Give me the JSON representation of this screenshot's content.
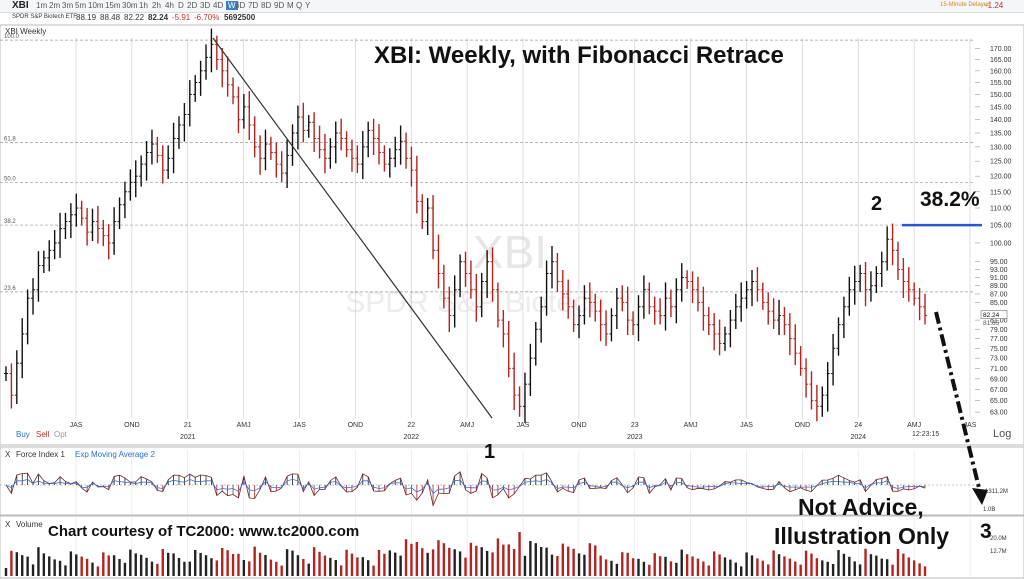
{
  "toolbar": {
    "symbol": "XBI",
    "timeframes": [
      "1m",
      "2m",
      "3m",
      "5m",
      "10m",
      "15m",
      "30m",
      "1h",
      "2h",
      "4h",
      "D",
      "2D",
      "3D",
      "4D",
      "W",
      "6D",
      "7D",
      "8D",
      "9D",
      "M",
      "Q",
      "Y"
    ],
    "active_timeframe": "W",
    "right_note": "15-Minute Delayed",
    "right_change": "-1.24"
  },
  "info": {
    "name": "SPDR S&P Biotech ETF",
    "open": "88.19",
    "high": "88.48",
    "low": "82.22",
    "close": "82.24",
    "change": "-5.91",
    "change_pct": "-6.70%",
    "volume": "5692500"
  },
  "panel_label": "XBI Weekly",
  "watermark": {
    "symbol": "XBI",
    "name": "SPDR S&P Biotech"
  },
  "annotations": {
    "title": "XBI:  Weekly, with Fibonacci Retrace",
    "label_1": "1",
    "label_2": "2",
    "label_3": "3",
    "fib_label": "38.2%",
    "disclaimer_1": "Not Advice,",
    "disclaimer_2": "Illustration Only",
    "courtesy": "Chart courtesy of TC2000:  www.tc2000.com"
  },
  "order_bar": {
    "buy": "Buy",
    "sell": "Sell",
    "opt": "Opt"
  },
  "time_label": "12:23:15",
  "log_label": "Log",
  "indicators": {
    "force_x": "X",
    "force_name": "Force Index 1",
    "ema_name": "Exp Moving Average 2",
    "volume_x": "X",
    "volume_name": "Volume",
    "force_axis_tag": "-1311.2M",
    "vol_axis_top": "20.0M",
    "vol_axis_tag": "12.7M",
    "force_axis_low": "1.0B"
  },
  "colors": {
    "up": "#111111",
    "down": "#b4231f",
    "fib_line": "#2a56d6",
    "grid": "#c9c9c9"
  },
  "chart_data": {
    "type": "candlestick-ohlc",
    "title": "XBI:  Weekly, with Fibonacci Retrace",
    "price_scale": "log",
    "ylim": [
      62,
      175
    ],
    "y_ticks": [
      63,
      65,
      67,
      69,
      71,
      73,
      75,
      77,
      79,
      81,
      85,
      87,
      89,
      91,
      93,
      95,
      100,
      105,
      110,
      115,
      120,
      125,
      130,
      135,
      140,
      145,
      150,
      155,
      160,
      165,
      170
    ],
    "x_ticks": [
      "JAS",
      "OND",
      "21",
      "AMJ",
      "JAS",
      "OND",
      "22",
      "AMJ",
      "JAS",
      "OND",
      "23",
      "AMJ",
      "JAS",
      "OND",
      "24",
      "AMJ",
      "JAS"
    ],
    "x_year_labels": [
      "2021",
      "2022",
      "2023",
      "2024"
    ],
    "fib_levels": [
      {
        "label": "100.0",
        "price": 174
      },
      {
        "label": "61.8",
        "price": 131.5
      },
      {
        "label": "50.0",
        "price": 118
      },
      {
        "label": "38.2",
        "price": 105
      },
      {
        "label": "23.6",
        "price": 87.5
      }
    ],
    "last_price_tags": [
      "82.24",
      "81.65"
    ],
    "weekly_closes": [
      70,
      66,
      72,
      78,
      86,
      88,
      94,
      96,
      98,
      100,
      104,
      106,
      108,
      110,
      107,
      103,
      106,
      104,
      102,
      100,
      106,
      111,
      115,
      118,
      120,
      124,
      128,
      131,
      127,
      122,
      126,
      133,
      138,
      142,
      150,
      155,
      160,
      166,
      172,
      165,
      160,
      154,
      149,
      140,
      145,
      138,
      130,
      126,
      131,
      128,
      124,
      121,
      127,
      135,
      141,
      136,
      139,
      133,
      129,
      126,
      130,
      135,
      133,
      129,
      126,
      124,
      130,
      136,
      133,
      128,
      124,
      126,
      129,
      132,
      126,
      122,
      112,
      106,
      110,
      98,
      92,
      86,
      82,
      88,
      95,
      92,
      88,
      84,
      90,
      95,
      88,
      81,
      78,
      71,
      66,
      64,
      68,
      73,
      79,
      84,
      92,
      95,
      90,
      87,
      84,
      80,
      82,
      86,
      85,
      83,
      80,
      78,
      82,
      86,
      85,
      81,
      80,
      84,
      88,
      84,
      83,
      82,
      86,
      84,
      88,
      91,
      90,
      88,
      85,
      82,
      80,
      78,
      76,
      78,
      81,
      84,
      86,
      88,
      90,
      88,
      85,
      83,
      81,
      82,
      80,
      77,
      74,
      71,
      68,
      65,
      64,
      66,
      70,
      75,
      80,
      84,
      88,
      90,
      92,
      88,
      89,
      92,
      95,
      101,
      98,
      93,
      90,
      88,
      86,
      84,
      82
    ],
    "force_index_series": "oscillator around zero",
    "volume_series": "weekly volume bars"
  }
}
